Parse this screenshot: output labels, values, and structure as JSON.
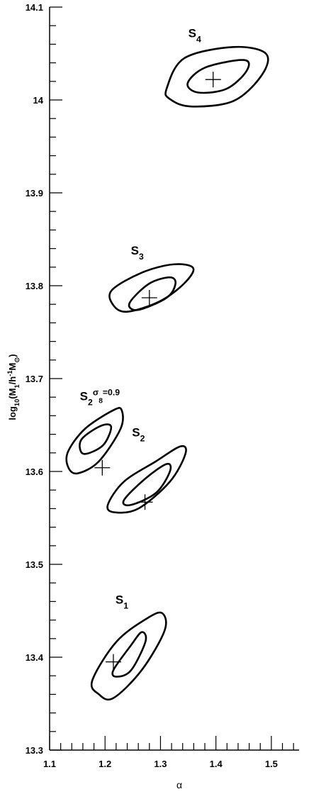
{
  "chart_data": {
    "type": "contour",
    "xlabel": "α",
    "ylabel_parts": [
      {
        "text": "log"
      },
      {
        "text": "10",
        "shift": "sub"
      },
      {
        "text": "(M"
      },
      {
        "text": "1",
        "shift": "sub"
      },
      {
        "text": "/h"
      },
      {
        "text": "-1",
        "shift": "super"
      },
      {
        "text": "M"
      },
      {
        "text": "⊙",
        "shift": "sub"
      },
      {
        "text": ")"
      }
    ],
    "xlim": [
      1.1,
      1.55
    ],
    "ylim": [
      13.3,
      14.1
    ],
    "xticks": [
      1.1,
      1.2,
      1.3,
      1.4,
      1.5
    ],
    "yticks": [
      13.3,
      13.4,
      13.5,
      13.6,
      13.7,
      13.8,
      13.9,
      14,
      14.1
    ],
    "xticks_minor": [
      1.12,
      1.14,
      1.16,
      1.18,
      1.22,
      1.24,
      1.26,
      1.28,
      1.32,
      1.34,
      1.36,
      1.38,
      1.42,
      1.44,
      1.46,
      1.48,
      1.52,
      1.54
    ],
    "yticks_minor": [
      13.32,
      13.34,
      13.36,
      13.38,
      13.42,
      13.44,
      13.46,
      13.48,
      13.52,
      13.54,
      13.56,
      13.58,
      13.62,
      13.64,
      13.66,
      13.68,
      13.72,
      13.74,
      13.76,
      13.78,
      13.82,
      13.84,
      13.86,
      13.88,
      13.92,
      13.94,
      13.96,
      13.98,
      14.02,
      14.04,
      14.06,
      14.08
    ],
    "color": "#000000",
    "series": [
      {
        "name_parts": [
          {
            "text": "S"
          },
          {
            "text": "4",
            "shift": "sub"
          }
        ],
        "x": 1.395,
        "y": 14.022,
        "contours": [
          {
            "x": [
              1.311,
              1.343,
              1.432,
              1.49,
              1.483,
              1.432,
              1.355,
              1.317
            ],
            "y": [
              14.012,
              14.045,
              14.057,
              14.05,
              14.027,
              13.999,
              13.993,
              14.001
            ]
          },
          {
            "x": [
              1.349,
              1.381,
              1.451,
              1.455,
              1.419,
              1.368
            ],
            "y": [
              14.018,
              14.035,
              14.043,
              14.031,
              14.012,
              14.008
            ]
          }
        ]
      },
      {
        "name_parts": [
          {
            "text": "S"
          },
          {
            "text": "3",
            "shift": "sub"
          }
        ],
        "x": 1.28,
        "y": 13.787,
        "contours": [
          {
            "x": [
              1.212,
              1.266,
              1.323,
              1.359,
              1.342,
              1.298,
              1.24,
              1.215
            ],
            "y": [
              13.795,
              13.814,
              13.823,
              13.819,
              13.802,
              13.783,
              13.772,
              13.779
            ]
          },
          {
            "x": [
              1.244,
              1.279,
              1.317,
              1.327,
              1.311,
              1.26
            ],
            "y": [
              13.781,
              13.802,
              13.809,
              13.802,
              13.787,
              13.774
            ]
          }
        ]
      },
      {
        "name_parts": [
          {
            "text": "S"
          },
          {
            "text": "2",
            "shift": "sub"
          },
          {
            "text": "σ",
            "shift": "super"
          },
          {
            "text": "8",
            "shift": "supersub"
          },
          {
            "text": "=0.9",
            "shift": "super"
          }
        ],
        "x": 1.195,
        "y": 13.604,
        "contours": [
          {
            "x": [
              1.133,
              1.164,
              1.215,
              1.23,
              1.228,
              1.189,
              1.151,
              1.134
            ],
            "y": [
              13.621,
              13.646,
              13.666,
              13.666,
              13.646,
              13.611,
              13.598,
              13.604
            ]
          },
          {
            "x": [
              1.157,
              1.192,
              1.211,
              1.196,
              1.161
            ],
            "y": [
              13.634,
              13.649,
              13.648,
              13.628,
              13.619
            ]
          }
        ]
      },
      {
        "name_parts": [
          {
            "text": "S"
          },
          {
            "text": "2",
            "shift": "sub"
          }
        ],
        "x": 1.272,
        "y": 13.567,
        "contours": [
          {
            "x": [
              1.205,
              1.234,
              1.292,
              1.336,
              1.345,
              1.317,
              1.26,
              1.217
            ],
            "y": [
              13.564,
              13.589,
              13.611,
              13.627,
              13.619,
              13.589,
              13.56,
              13.556
            ]
          },
          {
            "x": [
              1.234,
              1.272,
              1.311,
              1.317,
              1.292,
              1.247
            ],
            "y": [
              13.569,
              13.592,
              13.608,
              13.6,
              13.577,
              13.564
            ]
          }
        ]
      },
      {
        "name_parts": [
          {
            "text": "S"
          },
          {
            "text": "1",
            "shift": "sub"
          }
        ],
        "x": 1.215,
        "y": 13.395,
        "contours": [
          {
            "x": [
              1.177,
              1.221,
              1.279,
              1.304,
              1.307,
              1.266,
              1.215,
              1.189
            ],
            "y": [
              13.375,
              13.417,
              13.443,
              13.447,
              13.428,
              13.386,
              13.356,
              13.36
            ]
          },
          {
            "x": [
              1.215,
              1.247,
              1.266,
              1.273,
              1.247,
              1.221
            ],
            "y": [
              13.386,
              13.413,
              13.427,
              13.417,
              13.386,
              13.379
            ]
          }
        ]
      }
    ]
  }
}
